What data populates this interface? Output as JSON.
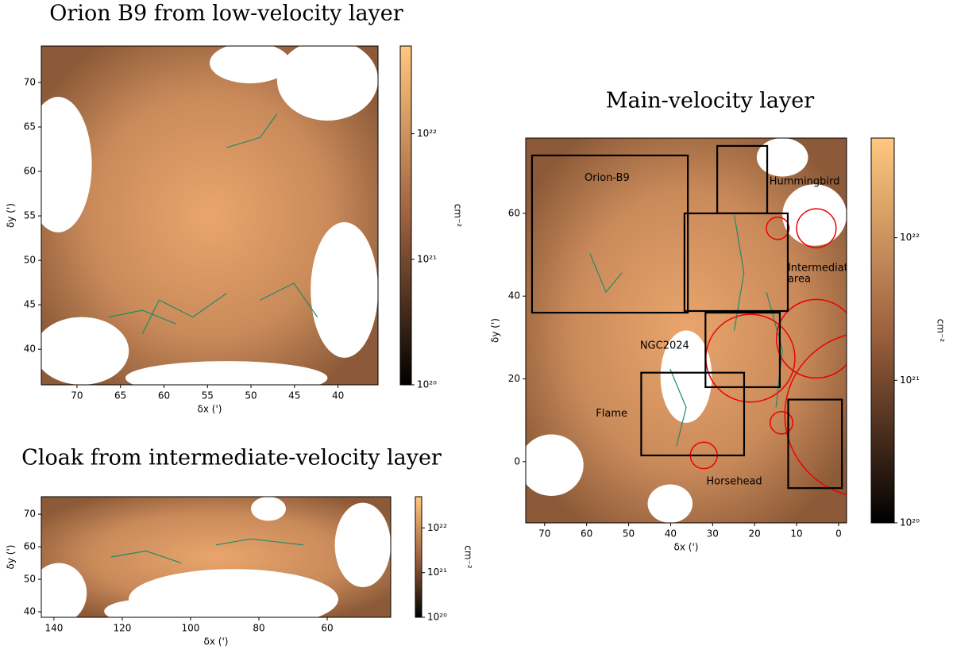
{
  "chart_data": [
    {
      "type": "map",
      "title": "Orion B9 from low-velocity layer",
      "xlabel": "δx (')",
      "ylabel": "δy (')",
      "xlim": [
        74.1,
        35.4
      ],
      "ylim": [
        36,
        74.1
      ],
      "xticks": [
        70,
        65,
        60,
        55,
        50,
        45,
        40
      ],
      "yticks": [
        40,
        45,
        50,
        55,
        60,
        65,
        70
      ],
      "colorbar": {
        "label": "cm⁻²",
        "scale": "log",
        "lim": [
          1e+20,
          5e+22
        ],
        "ticks": [
          {
            "value": 1e+20,
            "label": "10²⁰"
          },
          {
            "value": 1e+21,
            "label": "10²¹"
          },
          {
            "value": 1e+22,
            "label": "10²²"
          }
        ]
      }
    },
    {
      "type": "map",
      "title": "Cloak from intermediate-velocity layer",
      "xlabel": "δx (')",
      "ylabel": "δy (')",
      "xlim": [
        143.7,
        41.4
      ],
      "ylim": [
        38.3,
        75.4
      ],
      "xticks": [
        140,
        120,
        100,
        80,
        60
      ],
      "yticks": [
        40,
        50,
        60,
        70
      ],
      "colorbar": {
        "label": "cm⁻²",
        "scale": "log",
        "lim": [
          1e+20,
          5e+22
        ],
        "ticks": [
          {
            "value": 1e+20,
            "label": "10²⁰"
          },
          {
            "value": 1e+21,
            "label": "10²¹"
          },
          {
            "value": 1e+22,
            "label": "10²²"
          }
        ]
      }
    },
    {
      "type": "map",
      "title": "Main-velocity layer",
      "xlabel": "δx (')",
      "ylabel": "δy (')",
      "xlim": [
        74.5,
        -1.9
      ],
      "ylim": [
        -14.8,
        78.2
      ],
      "xticks": [
        70,
        60,
        50,
        40,
        30,
        20,
        10,
        0
      ],
      "yticks": [
        0,
        20,
        40,
        60
      ],
      "colorbar": {
        "label": "cm⁻²",
        "scale": "log",
        "lim": [
          1e+20,
          5e+22
        ],
        "ticks": [
          {
            "value": 1e+20,
            "label": "10²⁰"
          },
          {
            "value": 1e+21,
            "label": "10²¹"
          },
          {
            "value": 1e+22,
            "label": "10²²"
          }
        ]
      },
      "boxes": [
        {
          "label": [
            "Orion-B9"
          ],
          "x": [
            73,
            35.9
          ],
          "y": [
            36,
            74
          ],
          "at": [
            60.5,
            68.5
          ]
        },
        {
          "label": [
            "Hummingbird"
          ],
          "x": [
            28.9,
            17
          ],
          "y": [
            60,
            76.3
          ],
          "at": [
            16.5,
            67.7
          ]
        },
        {
          "label": [
            "Intermediate",
            "area"
          ],
          "x": [
            36.7,
            12.1
          ],
          "y": [
            36.4,
            60
          ],
          "at": [
            12.1,
            46.8
          ]
        },
        {
          "label": [
            "NGC2024"
          ],
          "x": [
            31.7,
            14
          ],
          "y": [
            18,
            36
          ],
          "at": [
            47.3,
            28
          ]
        },
        {
          "label": [
            "Flame"
          ],
          "x": [
            47,
            22.5
          ],
          "y": [
            1.5,
            21.5
          ],
          "at": [
            57.8,
            11.6
          ]
        },
        {
          "label": [
            "Horsehead"
          ],
          "x": [
            12,
            -0.8
          ],
          "y": [
            -6.4,
            15
          ],
          "at": [
            31.5,
            -4.8
          ]
        }
      ],
      "circles": [
        {
          "x": 5.3,
          "y": 56.4,
          "r": 4.7
        },
        {
          "x": 14.5,
          "y": 56.4,
          "r": 2.7
        },
        {
          "x": 21,
          "y": 25,
          "r": 10.6
        },
        {
          "x": 5.3,
          "y": 29.7,
          "r": 9.5
        },
        {
          "x": 13.6,
          "y": 9.4,
          "r": 2.7
        },
        {
          "x": 32.1,
          "y": 1.5,
          "r": 3.2
        },
        {
          "x": -7.2,
          "y": 11.3,
          "r": 20
        }
      ]
    }
  ]
}
